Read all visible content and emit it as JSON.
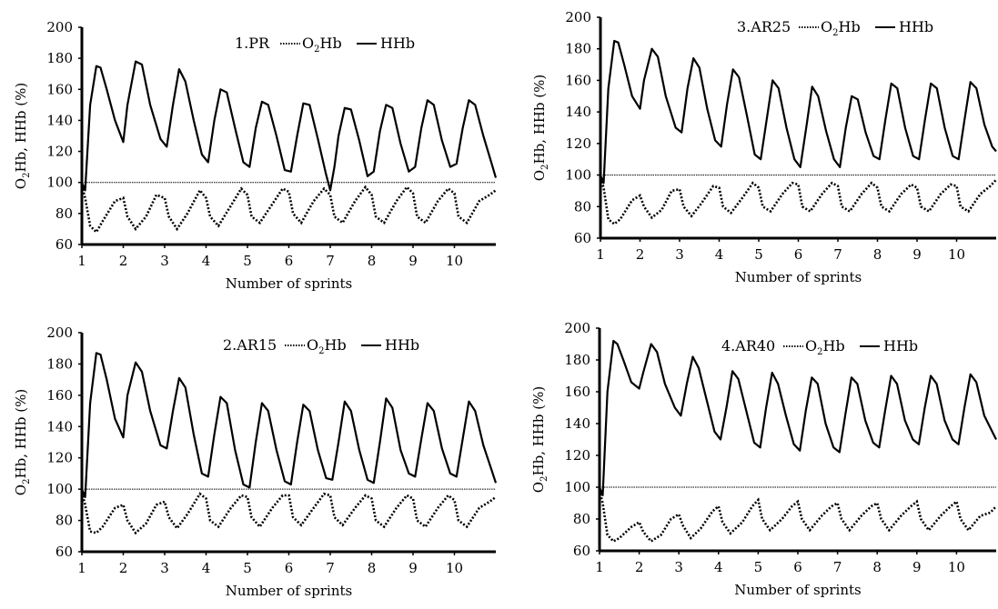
{
  "page": {
    "background": "#ffffff"
  },
  "legend_labels": {
    "o2hb": "O2Hb",
    "hhb": "HHb"
  },
  "chart_data": [
    {
      "type": "line",
      "title": "1.PR",
      "xlabel": "Number of sprints",
      "ylabel": "O2Hb, HHb (%)",
      "xlim": [
        1,
        11
      ],
      "ylim": [
        60,
        200
      ],
      "xticks": [
        1,
        2,
        3,
        4,
        5,
        6,
        7,
        8,
        9,
        10
      ],
      "yticks": [
        60,
        80,
        100,
        120,
        140,
        160,
        180,
        200
      ],
      "reference_line": 100,
      "grid": false,
      "legend": "top-right",
      "colors": {
        "hhb": "#000000",
        "o2hb": "#000000",
        "reference": "#000000"
      },
      "series": [
        {
          "name": "O2Hb",
          "style": "dotted",
          "x": [
            1.0,
            1.08,
            1.2,
            1.35,
            1.5,
            1.8,
            2.0,
            2.1,
            2.3,
            2.55,
            2.8,
            3.0,
            3.1,
            3.3,
            3.55,
            3.85,
            4.0,
            4.1,
            4.3,
            4.6,
            4.85,
            5.0,
            5.1,
            5.3,
            5.6,
            5.85,
            6.0,
            6.1,
            6.3,
            6.6,
            6.85,
            7.0,
            7.1,
            7.3,
            7.6,
            7.85,
            8.0,
            8.1,
            8.3,
            8.6,
            8.85,
            9.0,
            9.1,
            9.3,
            9.6,
            9.85,
            10.0,
            10.1,
            10.3,
            10.6,
            10.85,
            11.0
          ],
          "y": [
            98,
            90,
            72,
            68,
            75,
            88,
            90,
            78,
            70,
            78,
            92,
            90,
            78,
            70,
            80,
            95,
            90,
            78,
            72,
            85,
            96,
            92,
            78,
            74,
            86,
            96,
            94,
            80,
            74,
            88,
            96,
            92,
            78,
            74,
            88,
            97,
            92,
            78,
            74,
            88,
            97,
            93,
            78,
            74,
            88,
            96,
            93,
            78,
            74,
            88,
            92,
            95
          ]
        },
        {
          "name": "HHb",
          "style": "solid",
          "x": [
            1.0,
            1.08,
            1.2,
            1.35,
            1.45,
            1.6,
            1.8,
            2.0,
            2.1,
            2.3,
            2.45,
            2.65,
            2.9,
            3.05,
            3.2,
            3.35,
            3.5,
            3.7,
            3.9,
            4.05,
            4.2,
            4.35,
            4.5,
            4.7,
            4.9,
            5.05,
            5.2,
            5.35,
            5.5,
            5.7,
            5.9,
            6.05,
            6.2,
            6.35,
            6.5,
            6.7,
            6.9,
            7.0,
            7.1,
            7.2,
            7.35,
            7.5,
            7.7,
            7.9,
            8.05,
            8.2,
            8.35,
            8.5,
            8.7,
            8.9,
            9.05,
            9.2,
            9.35,
            9.5,
            9.7,
            9.9,
            10.05,
            10.2,
            10.35,
            10.5,
            10.7,
            10.9,
            11.0
          ],
          "y": [
            100,
            95,
            150,
            175,
            174,
            160,
            140,
            126,
            150,
            178,
            176,
            150,
            128,
            123,
            150,
            173,
            165,
            140,
            118,
            113,
            140,
            160,
            158,
            135,
            113,
            110,
            135,
            152,
            150,
            130,
            108,
            107,
            130,
            151,
            150,
            128,
            105,
            95,
            110,
            130,
            148,
            147,
            127,
            104,
            107,
            133,
            150,
            148,
            125,
            107,
            110,
            135,
            153,
            150,
            127,
            110,
            112,
            135,
            153,
            150,
            130,
            112,
            103
          ]
        }
      ]
    },
    {
      "type": "line",
      "title": "3.AR25",
      "xlabel": "Number of sprints",
      "ylabel": "O2Hb, HHb (%)",
      "xlim": [
        1,
        11
      ],
      "ylim": [
        60,
        200
      ],
      "xticks": [
        1,
        2,
        3,
        4,
        5,
        6,
        7,
        8,
        9,
        10
      ],
      "yticks": [
        60,
        80,
        100,
        120,
        140,
        160,
        180,
        200
      ],
      "reference_line": 100,
      "grid": false,
      "legend": "top-right",
      "colors": {
        "hhb": "#000000",
        "o2hb": "#000000",
        "reference": "#000000"
      },
      "series": [
        {
          "name": "O2Hb",
          "style": "dotted",
          "x": [
            1.0,
            1.08,
            1.2,
            1.35,
            1.5,
            1.8,
            2.0,
            2.1,
            2.3,
            2.55,
            2.8,
            3.0,
            3.1,
            3.3,
            3.55,
            3.85,
            4.0,
            4.1,
            4.3,
            4.6,
            4.85,
            5.0,
            5.1,
            5.3,
            5.6,
            5.85,
            6.0,
            6.1,
            6.3,
            6.6,
            6.85,
            7.0,
            7.1,
            7.3,
            7.6,
            7.85,
            8.0,
            8.1,
            8.3,
            8.6,
            8.85,
            9.0,
            9.1,
            9.3,
            9.6,
            9.85,
            10.0,
            10.1,
            10.3,
            10.6,
            10.85,
            11.0
          ],
          "y": [
            98,
            92,
            72,
            69,
            72,
            84,
            87,
            80,
            73,
            78,
            90,
            91,
            80,
            74,
            82,
            93,
            92,
            80,
            76,
            86,
            95,
            92,
            80,
            77,
            88,
            95,
            94,
            80,
            77,
            88,
            95,
            93,
            80,
            77,
            88,
            95,
            92,
            80,
            77,
            88,
            94,
            92,
            80,
            77,
            88,
            94,
            93,
            80,
            77,
            88,
            93,
            97
          ]
        },
        {
          "name": "HHb",
          "style": "solid",
          "x": [
            1.0,
            1.08,
            1.2,
            1.35,
            1.45,
            1.6,
            1.8,
            2.0,
            2.1,
            2.3,
            2.45,
            2.65,
            2.9,
            3.05,
            3.2,
            3.35,
            3.5,
            3.7,
            3.9,
            4.05,
            4.2,
            4.35,
            4.5,
            4.7,
            4.9,
            5.05,
            5.2,
            5.35,
            5.5,
            5.7,
            5.9,
            6.05,
            6.2,
            6.35,
            6.5,
            6.7,
            6.9,
            7.05,
            7.2,
            7.35,
            7.5,
            7.7,
            7.9,
            8.05,
            8.2,
            8.35,
            8.5,
            8.7,
            8.9,
            9.05,
            9.2,
            9.35,
            9.5,
            9.7,
            9.9,
            10.05,
            10.2,
            10.35,
            10.5,
            10.7,
            10.9,
            11.0
          ],
          "y": [
            100,
            95,
            155,
            185,
            184,
            170,
            150,
            142,
            160,
            180,
            175,
            150,
            130,
            127,
            155,
            174,
            168,
            142,
            122,
            118,
            145,
            167,
            162,
            138,
            113,
            110,
            135,
            160,
            155,
            130,
            110,
            105,
            130,
            156,
            150,
            128,
            110,
            105,
            130,
            150,
            148,
            127,
            112,
            110,
            135,
            158,
            155,
            130,
            112,
            110,
            135,
            158,
            155,
            130,
            112,
            110,
            135,
            159,
            155,
            132,
            118,
            115
          ]
        }
      ]
    },
    {
      "type": "line",
      "title": "2.AR15",
      "xlabel": "Number of sprints",
      "ylabel": "O2Hb, HHb (%)",
      "xlim": [
        1,
        11
      ],
      "ylim": [
        60,
        200
      ],
      "xticks": [
        1,
        2,
        3,
        4,
        5,
        6,
        7,
        8,
        9,
        10
      ],
      "yticks": [
        60,
        80,
        100,
        120,
        140,
        160,
        180,
        200
      ],
      "reference_line": 100,
      "grid": false,
      "legend": "top-right",
      "colors": {
        "hhb": "#000000",
        "o2hb": "#000000",
        "reference": "#000000"
      },
      "series": [
        {
          "name": "O2Hb",
          "style": "dotted",
          "x": [
            1.0,
            1.08,
            1.2,
            1.35,
            1.5,
            1.8,
            2.0,
            2.1,
            2.3,
            2.55,
            2.8,
            3.0,
            3.1,
            3.3,
            3.55,
            3.85,
            4.0,
            4.1,
            4.3,
            4.6,
            4.85,
            5.0,
            5.1,
            5.3,
            5.6,
            5.85,
            6.0,
            6.1,
            6.3,
            6.6,
            6.85,
            7.0,
            7.1,
            7.3,
            7.6,
            7.85,
            8.0,
            8.1,
            8.3,
            8.6,
            8.85,
            9.0,
            9.1,
            9.3,
            9.6,
            9.85,
            10.0,
            10.1,
            10.3,
            10.6,
            10.85,
            11.0
          ],
          "y": [
            98,
            90,
            73,
            72,
            76,
            88,
            90,
            80,
            72,
            78,
            90,
            92,
            82,
            75,
            84,
            97,
            94,
            80,
            76,
            88,
            96,
            95,
            82,
            76,
            88,
            96,
            96,
            82,
            77,
            88,
            97,
            96,
            82,
            77,
            88,
            96,
            94,
            80,
            76,
            88,
            96,
            94,
            80,
            76,
            88,
            96,
            93,
            80,
            76,
            88,
            92,
            95
          ]
        },
        {
          "name": "HHb",
          "style": "solid",
          "x": [
            1.0,
            1.08,
            1.2,
            1.35,
            1.45,
            1.6,
            1.8,
            2.0,
            2.1,
            2.3,
            2.45,
            2.65,
            2.9,
            3.05,
            3.2,
            3.35,
            3.5,
            3.7,
            3.9,
            4.05,
            4.2,
            4.35,
            4.5,
            4.7,
            4.9,
            5.05,
            5.2,
            5.35,
            5.5,
            5.7,
            5.9,
            6.05,
            6.2,
            6.35,
            6.5,
            6.7,
            6.9,
            7.05,
            7.2,
            7.35,
            7.5,
            7.7,
            7.9,
            8.05,
            8.2,
            8.35,
            8.5,
            8.7,
            8.9,
            9.05,
            9.2,
            9.35,
            9.5,
            9.7,
            9.9,
            10.05,
            10.2,
            10.35,
            10.5,
            10.7,
            10.9,
            11.0
          ],
          "y": [
            100,
            95,
            155,
            187,
            186,
            170,
            145,
            133,
            160,
            181,
            175,
            150,
            128,
            126,
            150,
            171,
            165,
            135,
            110,
            108,
            135,
            159,
            155,
            125,
            103,
            101,
            130,
            155,
            150,
            125,
            105,
            103,
            130,
            154,
            150,
            125,
            107,
            106,
            130,
            156,
            150,
            125,
            106,
            104,
            130,
            158,
            152,
            125,
            110,
            108,
            132,
            155,
            150,
            126,
            110,
            108,
            132,
            156,
            150,
            128,
            112,
            104
          ]
        }
      ]
    },
    {
      "type": "line",
      "title": "4.AR40",
      "xlabel": "Number of sprints",
      "ylabel": "O2Hb, HHb (%)",
      "xlim": [
        1,
        11
      ],
      "ylim": [
        60,
        200
      ],
      "xticks": [
        1,
        2,
        3,
        4,
        5,
        6,
        7,
        8,
        9,
        10
      ],
      "yticks": [
        60,
        80,
        100,
        120,
        140,
        160,
        180,
        200
      ],
      "reference_line": 100,
      "grid": false,
      "legend": "top-right",
      "colors": {
        "hhb": "#000000",
        "o2hb": "#000000",
        "reference": "#000000"
      },
      "series": [
        {
          "name": "O2Hb",
          "style": "dotted",
          "x": [
            1.0,
            1.08,
            1.2,
            1.35,
            1.5,
            1.8,
            2.0,
            2.1,
            2.3,
            2.55,
            2.8,
            3.0,
            3.1,
            3.3,
            3.55,
            3.85,
            4.0,
            4.1,
            4.3,
            4.6,
            4.85,
            5.0,
            5.1,
            5.3,
            5.6,
            5.85,
            6.0,
            6.1,
            6.3,
            6.6,
            6.85,
            7.0,
            7.1,
            7.3,
            7.6,
            7.85,
            8.0,
            8.1,
            8.3,
            8.6,
            8.85,
            9.0,
            9.1,
            9.3,
            9.6,
            9.85,
            10.0,
            10.1,
            10.3,
            10.6,
            10.85,
            11.0
          ],
          "y": [
            98,
            90,
            70,
            66,
            68,
            75,
            78,
            72,
            66,
            70,
            80,
            83,
            76,
            68,
            74,
            85,
            88,
            78,
            71,
            78,
            88,
            92,
            80,
            73,
            80,
            88,
            91,
            80,
            73,
            82,
            88,
            90,
            80,
            73,
            82,
            88,
            90,
            80,
            73,
            82,
            88,
            91,
            80,
            73,
            82,
            88,
            91,
            80,
            73,
            82,
            84,
            88
          ]
        },
        {
          "name": "HHb",
          "style": "solid",
          "x": [
            1.0,
            1.08,
            1.2,
            1.35,
            1.45,
            1.6,
            1.8,
            2.0,
            2.1,
            2.3,
            2.45,
            2.65,
            2.9,
            3.05,
            3.2,
            3.35,
            3.5,
            3.7,
            3.9,
            4.05,
            4.2,
            4.35,
            4.5,
            4.7,
            4.9,
            5.05,
            5.2,
            5.35,
            5.5,
            5.7,
            5.9,
            6.05,
            6.2,
            6.35,
            6.5,
            6.7,
            6.9,
            7.05,
            7.2,
            7.35,
            7.5,
            7.7,
            7.9,
            8.05,
            8.2,
            8.35,
            8.5,
            8.7,
            8.9,
            9.05,
            9.2,
            9.35,
            9.5,
            9.7,
            9.9,
            10.05,
            10.2,
            10.35,
            10.5,
            10.7,
            10.9,
            11.0
          ],
          "y": [
            100,
            95,
            160,
            192,
            190,
            180,
            166,
            162,
            172,
            190,
            185,
            165,
            150,
            145,
            165,
            182,
            175,
            155,
            135,
            130,
            150,
            173,
            168,
            148,
            128,
            125,
            150,
            172,
            165,
            145,
            127,
            123,
            148,
            169,
            165,
            140,
            125,
            122,
            146,
            169,
            165,
            142,
            128,
            125,
            148,
            170,
            165,
            142,
            130,
            127,
            150,
            170,
            165,
            142,
            130,
            127,
            150,
            171,
            166,
            145,
            135,
            130
          ]
        }
      ]
    }
  ]
}
